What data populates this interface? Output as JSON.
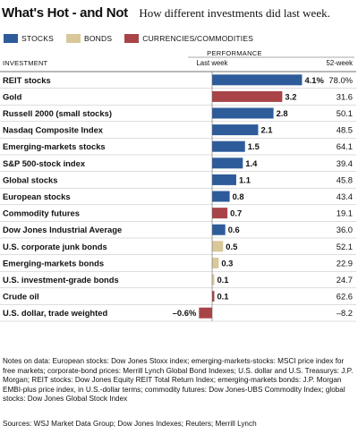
{
  "header": {
    "title": "What's Hot - and Not",
    "subtitle": "How different investments did last week."
  },
  "colors": {
    "stocks": "#2e5c9a",
    "bonds": "#d9c89a",
    "currencies": "#a84448"
  },
  "chart_data": {
    "type": "bar",
    "orientation": "horizontal",
    "legend": [
      {
        "key": "stocks",
        "label": "STOCKS"
      },
      {
        "key": "bonds",
        "label": "BONDS"
      },
      {
        "key": "currencies",
        "label": "CURRENCIES/COMMODITIES"
      }
    ],
    "column_header_left": "INVESTMENT",
    "column_group_header": "PERFORMANCE",
    "column_header_last_week": "Last week",
    "column_header_52week": "52-week",
    "rows": [
      {
        "name": "REIT stocks",
        "last_week": 4.1,
        "last_week_label": "4.1%",
        "week52": "78.0%",
        "category": "stocks"
      },
      {
        "name": "Gold",
        "last_week": 3.2,
        "last_week_label": "3.2",
        "week52": "31.6",
        "category": "currencies"
      },
      {
        "name": "Russell 2000 (small stocks)",
        "last_week": 2.8,
        "last_week_label": "2.8",
        "week52": "50.1",
        "category": "stocks"
      },
      {
        "name": "Nasdaq Composite Index",
        "last_week": 2.1,
        "last_week_label": "2.1",
        "week52": "48.5",
        "category": "stocks"
      },
      {
        "name": "Emerging-markets stocks",
        "last_week": 1.5,
        "last_week_label": "1.5",
        "week52": "64.1",
        "category": "stocks"
      },
      {
        "name": "S&P 500-stock index",
        "last_week": 1.4,
        "last_week_label": "1.4",
        "week52": "39.4",
        "category": "stocks"
      },
      {
        "name": "Global stocks",
        "last_week": 1.1,
        "last_week_label": "1.1",
        "week52": "45.8",
        "category": "stocks"
      },
      {
        "name": "European stocks",
        "last_week": 0.8,
        "last_week_label": "0.8",
        "week52": "43.4",
        "category": "stocks"
      },
      {
        "name": "Commodity futures",
        "last_week": 0.7,
        "last_week_label": "0.7",
        "week52": "19.1",
        "category": "currencies"
      },
      {
        "name": "Dow Jones Industrial Average",
        "last_week": 0.6,
        "last_week_label": "0.6",
        "week52": "36.0",
        "category": "stocks"
      },
      {
        "name": "U.S. corporate junk bonds",
        "last_week": 0.5,
        "last_week_label": "0.5",
        "week52": "52.1",
        "category": "bonds"
      },
      {
        "name": "Emerging-markets bonds",
        "last_week": 0.3,
        "last_week_label": "0.3",
        "week52": "22.9",
        "category": "bonds"
      },
      {
        "name": "U.S. investment-grade bonds",
        "last_week": 0.1,
        "last_week_label": "0.1",
        "week52": "24.7",
        "category": "bonds"
      },
      {
        "name": "Crude oil",
        "last_week": 0.1,
        "last_week_label": "0.1",
        "week52": "62.6",
        "category": "currencies"
      },
      {
        "name": "U.S. dollar, trade weighted",
        "last_week": -0.6,
        "last_week_label": "–0.6%",
        "week52": "–8.2",
        "category": "currencies"
      }
    ]
  },
  "notes": "Notes on data: European stocks: Dow Jones Stoxx index; emerging-markets-stocks: MSCI price index for free markets; corporate-bond prices: Merrill Lynch Global Bond Indexes; U.S. dollar and U.S. Treasurys: J.P. Morgan; REIT stocks: Dow Jones Equity REIT Total Return Index; emerging-markets bonds: J.P. Morgan EMBI-plus price index, in U.S.-dollar terms; commodity futures: Dow Jones-UBS Commodity Index; global stocks: Dow Jones Global Stock Index",
  "sources": "Sources: WSJ Market Data Group; Dow Jones Indexes; Reuters; Merrill Lynch"
}
